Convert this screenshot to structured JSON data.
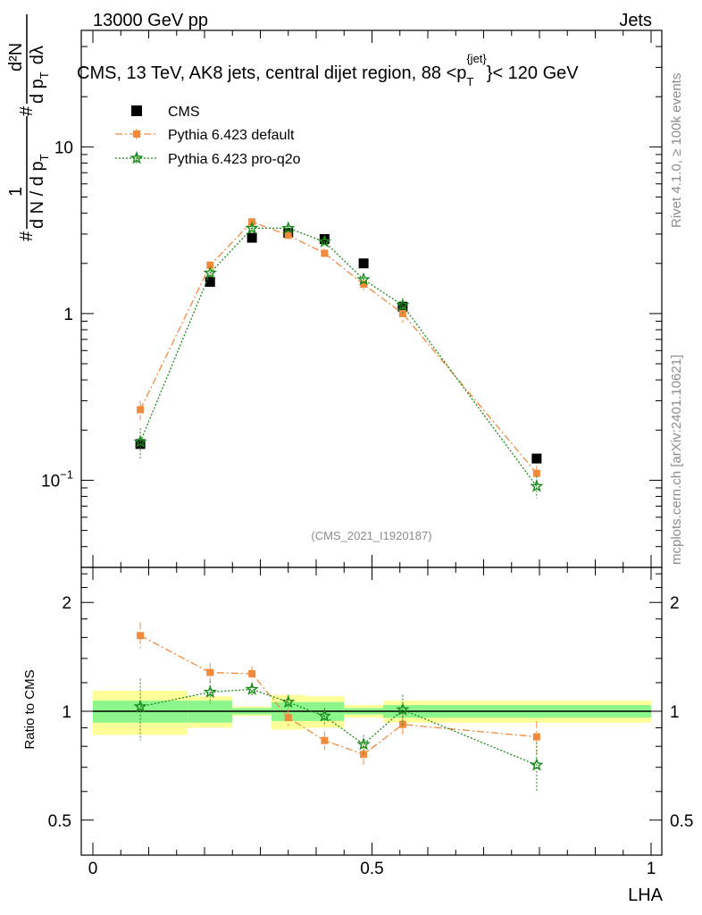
{
  "header": {
    "left": "13000 GeV pp",
    "right": "Jets"
  },
  "side_text": {
    "rivet": "Rivet 4.1.0, ≥ 100k events",
    "mcplots": "mcplots.cern.ch [arXiv:2401.10621]"
  },
  "chart_data": {
    "type": "scatter",
    "title": "CMS, 13 TeV, AK8 jets, central dijet region, 88 <p_T^{jet}< 120 GeV",
    "title_parts": {
      "pre": "CMS, 13 TeV, AK8 jets, central dijet region, 88 <p",
      "sub": "T",
      "sup": "{jet}",
      "post": "}< 120 GeV"
    },
    "analysis_id": "(CMS_2021_I1920187)",
    "xlabel": "LHA",
    "ylabel_parts": {
      "hash": "#",
      "one": "1",
      "dN": "d N / d p",
      "T": "T",
      "num": "d²N",
      "den": "d p",
      "dl": "dλ"
    },
    "ratio_ylabel": "Ratio to CMS",
    "xlim": [
      0,
      1
    ],
    "ylim": [
      0.03,
      50
    ],
    "yscale": "log",
    "ratio_ylim": [
      0.4,
      2.5
    ],
    "x_ticks": [
      {
        "v": 0,
        "label": "0"
      },
      {
        "v": 0.5,
        "label": "0.5"
      },
      {
        "v": 1,
        "label": "1"
      }
    ],
    "y_ticks": [
      {
        "v": 0.1,
        "base": "10",
        "exp": "−1"
      },
      {
        "v": 1,
        "base": "1",
        "exp": ""
      },
      {
        "v": 10,
        "base": "10",
        "exp": ""
      }
    ],
    "ratio_ticks": [
      {
        "v": 0.5,
        "label": "0.5"
      },
      {
        "v": 1,
        "label": "1"
      },
      {
        "v": 2,
        "label": "2"
      }
    ],
    "bins": [
      0,
      0.17,
      0.25,
      0.32,
      0.38,
      0.45,
      0.52,
      0.6,
      1.0
    ],
    "legend": [
      {
        "name": "CMS",
        "color": "#000000",
        "marker": "square"
      },
      {
        "name": "Pythia 6.423 default",
        "color": "#f28a3c",
        "marker": "square-small"
      },
      {
        "name": "Pythia 6.423 pro-q2o",
        "color": "#1a8a1a",
        "marker": "star"
      }
    ],
    "series": [
      {
        "name": "CMS",
        "x": [
          0.085,
          0.21,
          0.285,
          0.35,
          0.415,
          0.485,
          0.555,
          0.795
        ],
        "y": [
          0.165,
          1.55,
          2.85,
          3.05,
          2.8,
          2.0,
          1.1,
          0.135
        ]
      },
      {
        "name": "Pythia 6.423 default",
        "x": [
          0.085,
          0.21,
          0.285,
          0.35,
          0.415,
          0.485,
          0.555,
          0.795
        ],
        "y": [
          0.265,
          1.95,
          3.55,
          2.95,
          2.3,
          1.5,
          1.0,
          0.11
        ],
        "yerr": [
          0.035,
          0.12,
          0.12,
          0.12,
          0.14,
          0.12,
          0.12,
          0.012
        ],
        "ratio": [
          1.62,
          1.28,
          1.27,
          0.96,
          0.83,
          0.76,
          0.92,
          0.85
        ],
        "ratio_err": [
          0.14,
          0.08,
          0.06,
          0.05,
          0.05,
          0.05,
          0.07,
          0.09
        ]
      },
      {
        "name": "Pythia 6.423 pro-q2o",
        "x": [
          0.085,
          0.21,
          0.285,
          0.35,
          0.415,
          0.485,
          0.555,
          0.795
        ],
        "y": [
          0.17,
          1.75,
          3.25,
          3.25,
          2.7,
          1.6,
          1.12,
          0.092
        ],
        "yerr": [
          0.035,
          0.12,
          0.12,
          0.12,
          0.12,
          0.12,
          0.12,
          0.014
        ],
        "ratio": [
          1.03,
          1.13,
          1.15,
          1.06,
          0.97,
          0.81,
          1.01,
          0.71
        ],
        "ratio_err": [
          0.2,
          0.08,
          0.05,
          0.05,
          0.05,
          0.05,
          0.1,
          0.11
        ]
      }
    ],
    "uncertainty_bands": {
      "inner": [
        0.07,
        0.07,
        0.02,
        0.06,
        0.06,
        0.02,
        0.04,
        0.04
      ],
      "outer": [
        0.14,
        0.1,
        0.03,
        0.11,
        0.1,
        0.04,
        0.07,
        0.07
      ]
    }
  },
  "colors": {
    "band_inner": "#8cf58c",
    "band_outer": "#ffff99",
    "side_text": "#8c8c8c"
  }
}
